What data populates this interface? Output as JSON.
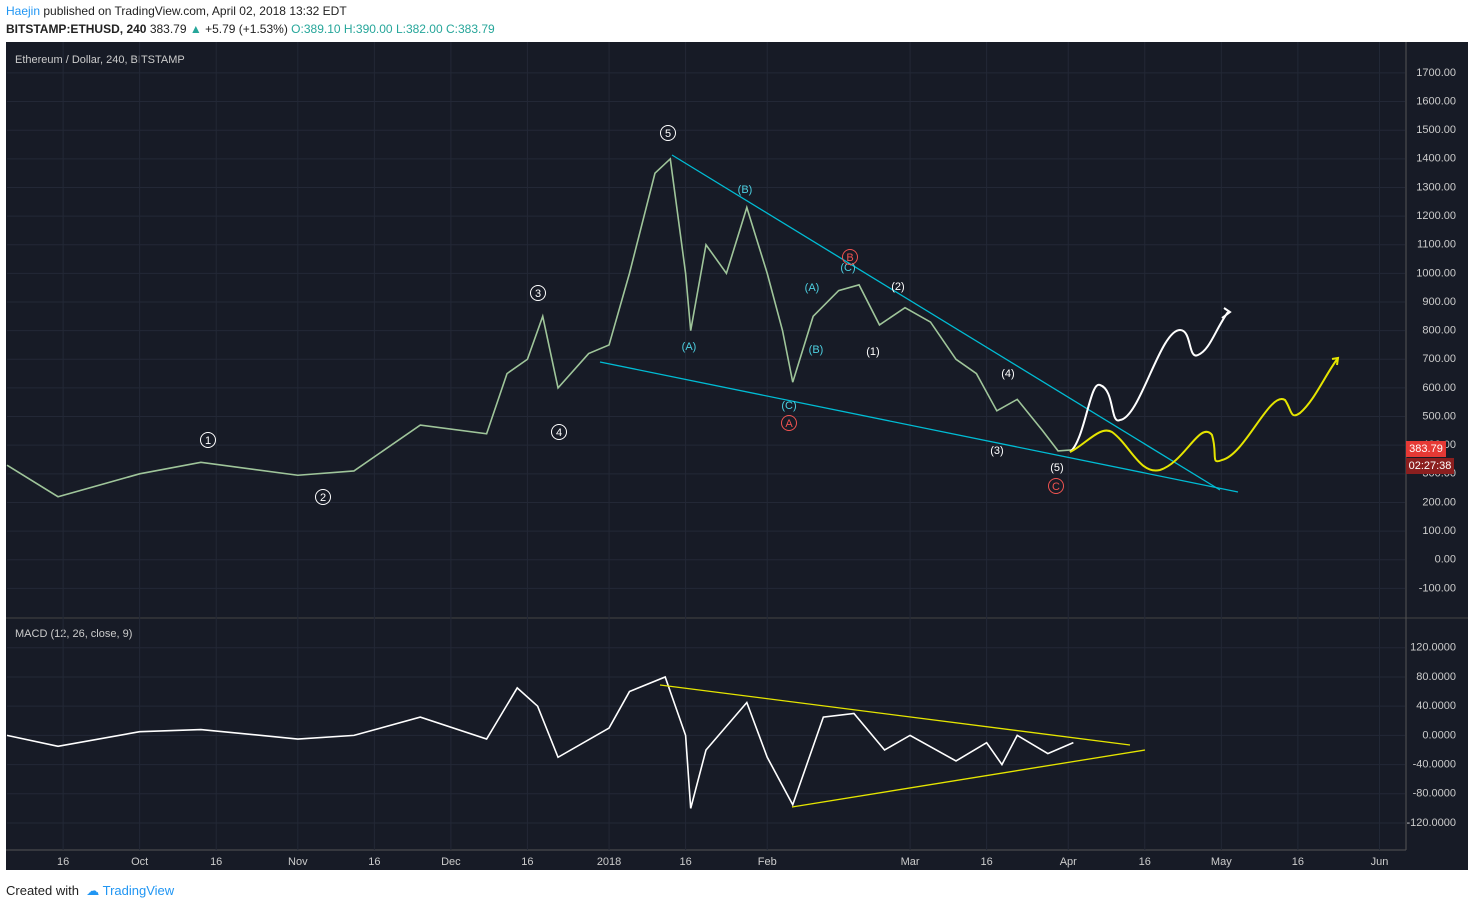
{
  "header": {
    "author": "Haejin",
    "published": "published on TradingView.com, April 02, 2018 13:32 EDT",
    "symbol": "BITSTAMP:ETHUSD, 240",
    "last": "383.79",
    "change": "+5.79 (+1.53%)",
    "open": "O:389.10",
    "high": "H:390.00",
    "low": "L:382.00",
    "close": "C:383.79"
  },
  "chart_data": [
    {
      "type": "line",
      "title": "Ethereum / Dollar, 240, BITSTAMP",
      "color": "#9fc59a",
      "x": [
        "2017-09-05",
        "2017-09-15",
        "2017-10-01",
        "2017-10-13",
        "2017-11-01",
        "2017-11-12",
        "2017-11-25",
        "2017-12-08",
        "2017-12-12",
        "2017-12-16",
        "2017-12-19",
        "2017-12-22",
        "2017-12-28",
        "2018-01-01",
        "2018-01-05",
        "2018-01-10",
        "2018-01-13",
        "2018-01-16",
        "2018-01-17",
        "2018-01-20",
        "2018-01-24",
        "2018-01-28",
        "2018-02-01",
        "2018-02-04",
        "2018-02-06",
        "2018-02-10",
        "2018-02-15",
        "2018-02-19",
        "2018-02-23",
        "2018-02-28",
        "2018-03-05",
        "2018-03-10",
        "2018-03-14",
        "2018-03-18",
        "2018-03-22",
        "2018-03-27",
        "2018-03-30",
        "2018-04-02"
      ],
      "values": [
        330,
        220,
        300,
        340,
        295,
        310,
        470,
        440,
        650,
        700,
        850,
        600,
        720,
        750,
        1000,
        1350,
        1400,
        1000,
        800,
        1100,
        1000,
        1230,
        1000,
        800,
        620,
        850,
        940,
        960,
        820,
        880,
        830,
        700,
        650,
        520,
        560,
        450,
        380,
        384
      ],
      "xlim": [
        "2017-09-05",
        "2018-06-06"
      ],
      "ylim": [
        -200,
        1808
      ],
      "yticks": [
        {
          "value": -100,
          "label": "-100.00"
        },
        {
          "value": 0,
          "label": "0.00"
        },
        {
          "value": 100,
          "label": "100.00"
        },
        {
          "value": 200,
          "label": "200.00"
        },
        {
          "value": 300,
          "label": "300.00"
        },
        {
          "value": 400,
          "label": "400.00"
        },
        {
          "value": 500,
          "label": "500.00"
        },
        {
          "value": 600,
          "label": "600.00"
        },
        {
          "value": 700,
          "label": "700.00"
        },
        {
          "value": 800,
          "label": "800.00"
        },
        {
          "value": 900,
          "label": "900.00"
        },
        {
          "value": 1000,
          "label": "1000.00"
        },
        {
          "value": 1100,
          "label": "1100.00"
        },
        {
          "value": 1200,
          "label": "1200.00"
        },
        {
          "value": 1300,
          "label": "1300.00"
        },
        {
          "value": 1400,
          "label": "1400.00"
        },
        {
          "value": 1500,
          "label": "1500.00"
        },
        {
          "value": 1600,
          "label": "1600.00"
        },
        {
          "value": 1700,
          "label": "1700.00"
        }
      ],
      "xticks": [
        {
          "value": "2017-09-16",
          "label": "16"
        },
        {
          "value": "2017-10-01",
          "label": "Oct"
        },
        {
          "value": "2017-10-16",
          "label": "16"
        },
        {
          "value": "2017-11-01",
          "label": "Nov"
        },
        {
          "value": "2017-11-16",
          "label": "16"
        },
        {
          "value": "2017-12-01",
          "label": "Dec"
        },
        {
          "value": "2017-12-16",
          "label": "16"
        },
        {
          "value": "2018-01-01",
          "label": "2018"
        },
        {
          "value": "2018-01-16",
          "label": "16"
        },
        {
          "value": "2018-02-01",
          "label": "Feb"
        },
        {
          "value": "2018-03-01",
          "label": "Mar"
        },
        {
          "value": "2018-03-16",
          "label": "16"
        },
        {
          "value": "2018-04-01",
          "label": "Apr"
        },
        {
          "value": "2018-04-16",
          "label": "16"
        },
        {
          "value": "2018-05-01",
          "label": "May"
        },
        {
          "value": "2018-05-16",
          "label": "16"
        },
        {
          "value": "2018-06-01",
          "label": "Jun"
        }
      ],
      "grid": true,
      "annotations": [
        "1",
        "2",
        "3",
        "4",
        "5",
        "(A)",
        "(B)",
        "(C)",
        "A",
        "(A)",
        "(B)",
        "(C)",
        "B",
        "(1)",
        "(2)",
        "(3)",
        "(4)",
        "(5)",
        "C"
      ],
      "price_label": "383.79",
      "countdown": "02:27:38"
    },
    {
      "type": "line",
      "title": "MACD (12, 26, close, 9)",
      "color": "#ffffff",
      "x": [
        "2017-09-05",
        "2017-09-15",
        "2017-10-01",
        "2017-10-13",
        "2017-11-01",
        "2017-11-12",
        "2017-11-25",
        "2017-12-08",
        "2017-12-14",
        "2017-12-18",
        "2017-12-22",
        "2018-01-01",
        "2018-01-05",
        "2018-01-12",
        "2018-01-16",
        "2018-01-17",
        "2018-01-20",
        "2018-01-28",
        "2018-02-01",
        "2018-02-06",
        "2018-02-12",
        "2018-02-18",
        "2018-02-24",
        "2018-03-01",
        "2018-03-10",
        "2018-03-16",
        "2018-03-19",
        "2018-03-22",
        "2018-03-28",
        "2018-04-02"
      ],
      "values": [
        0,
        -15,
        5,
        8,
        -5,
        0,
        25,
        -5,
        65,
        40,
        -30,
        10,
        60,
        80,
        0,
        -100,
        -20,
        45,
        -30,
        -95,
        25,
        30,
        -20,
        0,
        -35,
        -10,
        -40,
        0,
        -25,
        -10
      ],
      "ylim": [
        -157,
        158
      ],
      "yticks": [
        {
          "value": -120,
          "label": "-120.0000"
        },
        {
          "value": -80,
          "label": "-80.0000"
        },
        {
          "value": -40,
          "label": "-40.0000"
        },
        {
          "value": 0,
          "label": "0.0000"
        },
        {
          "value": 40,
          "label": "40.0000"
        },
        {
          "value": 80,
          "label": "80.0000"
        },
        {
          "value": 120,
          "label": "120.0000"
        }
      ],
      "grid": true
    }
  ],
  "footer": {
    "created": "Created with",
    "brand": "TradingView"
  }
}
